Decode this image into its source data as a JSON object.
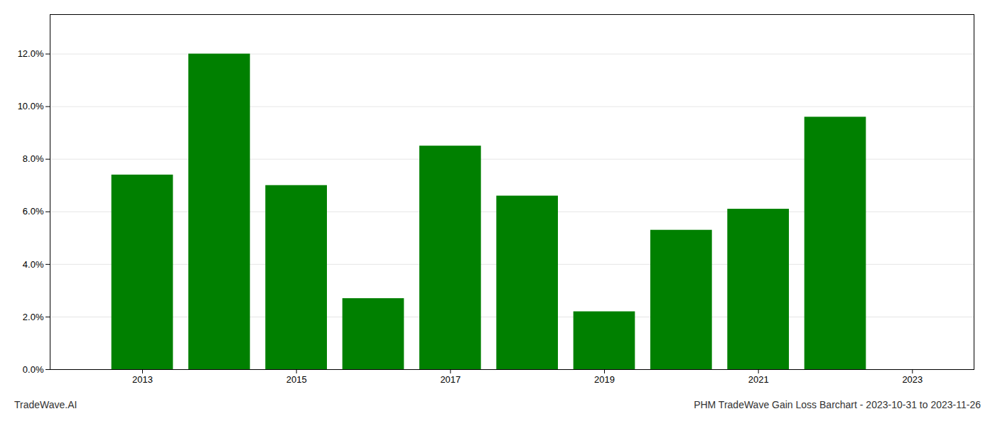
{
  "chart_data": {
    "type": "bar",
    "x": [
      2013,
      2014,
      2015,
      2016,
      2017,
      2018,
      2019,
      2020,
      2021,
      2022
    ],
    "values": [
      0.074,
      0.12,
      0.07,
      0.027,
      0.085,
      0.066,
      0.022,
      0.053,
      0.061,
      0.096
    ],
    "color": "#008000",
    "xlim": [
      2011.8,
      2023.8
    ],
    "xticks": [
      2013,
      2015,
      2017,
      2019,
      2021,
      2023
    ],
    "ylim": [
      0,
      0.135
    ],
    "yticks": [
      {
        "value": 0.0,
        "label": "0.0%"
      },
      {
        "value": 0.02,
        "label": "2.0%"
      },
      {
        "value": 0.04,
        "label": "4.0%"
      },
      {
        "value": 0.06,
        "label": "6.0%"
      },
      {
        "value": 0.08,
        "label": "8.0%"
      },
      {
        "value": 0.1,
        "label": "10.0%"
      },
      {
        "value": 0.12,
        "label": "12.0%"
      }
    ],
    "grid": true,
    "annotations": [
      "TradeWave.AI",
      "PHM TradeWave Gain Loss Barchart - 2023-10-31 to 2023-11-26"
    ]
  }
}
